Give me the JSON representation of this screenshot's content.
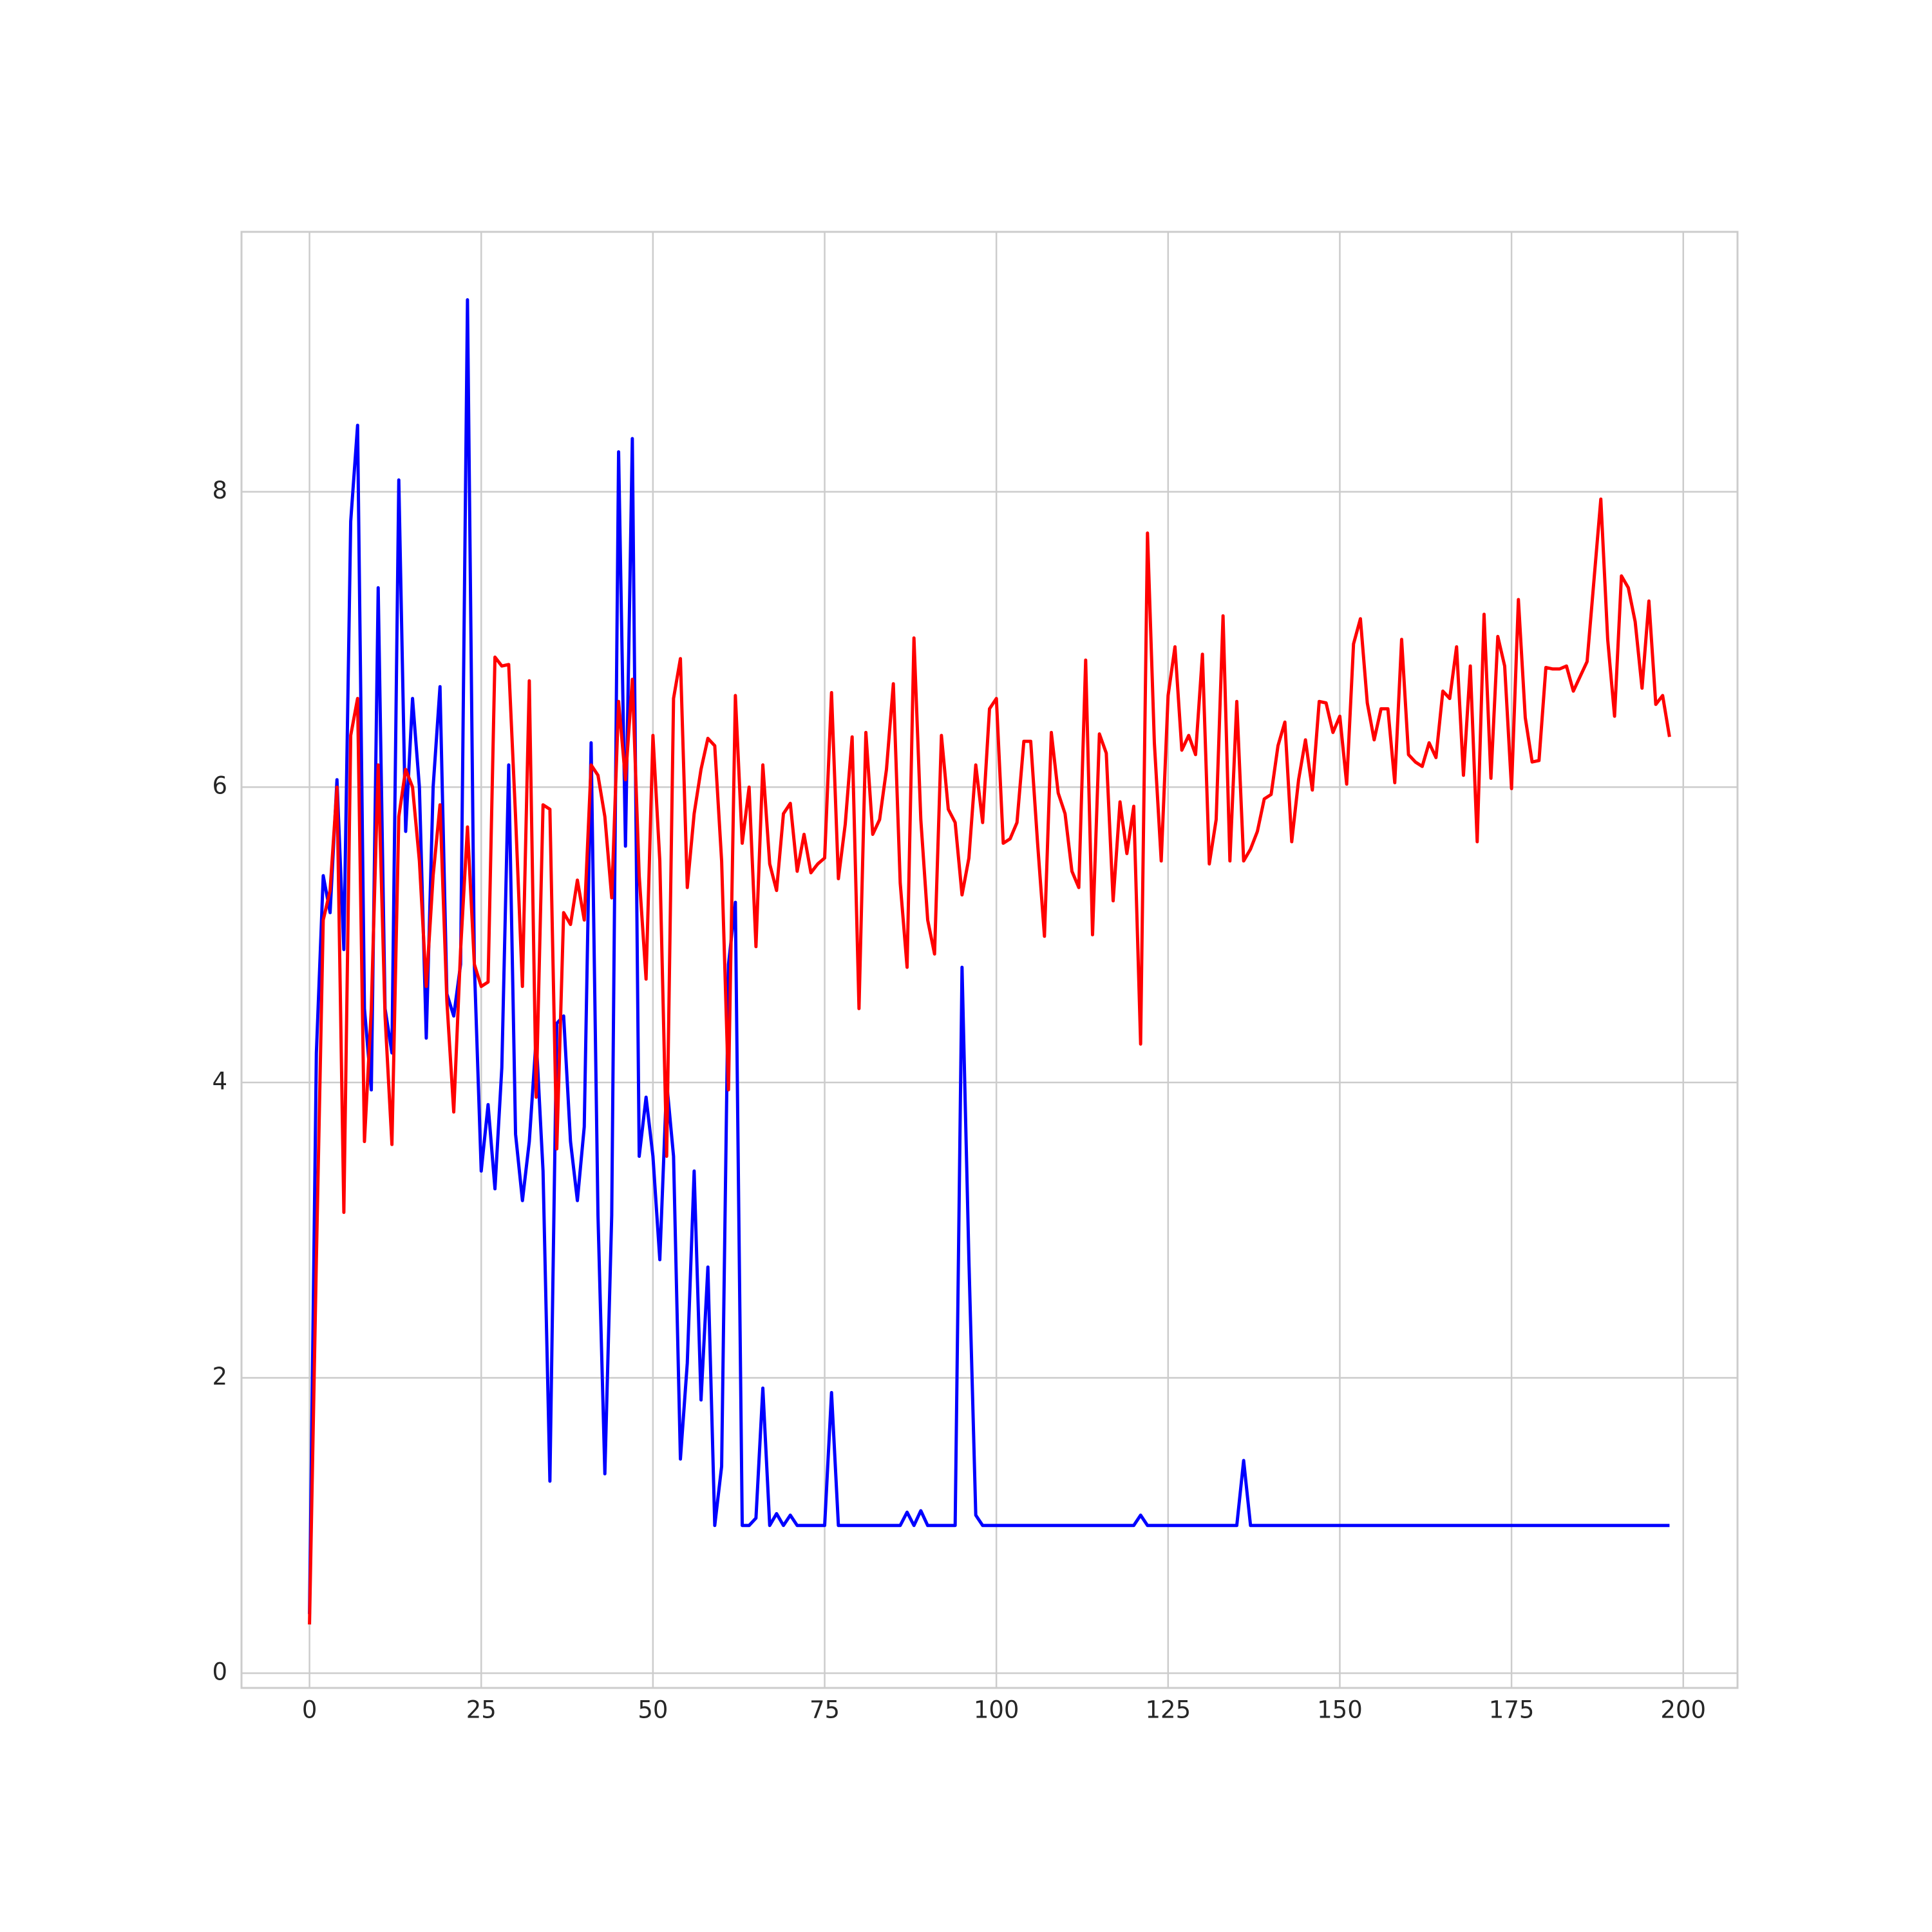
{
  "chart_data": {
    "type": "line",
    "grid": true,
    "xlim": [
      -9.9,
      207.9
    ],
    "ylim": [
      -0.1,
      9.76
    ],
    "xticks": [
      0,
      25,
      50,
      75,
      100,
      125,
      150,
      175,
      200
    ],
    "yticks": [
      0,
      2,
      4,
      6,
      8
    ],
    "x": [
      0,
      1,
      2,
      3,
      4,
      5,
      6,
      7,
      8,
      9,
      10,
      11,
      12,
      13,
      14,
      15,
      16,
      17,
      18,
      19,
      20,
      21,
      22,
      23,
      24,
      25,
      26,
      27,
      28,
      29,
      30,
      31,
      32,
      33,
      34,
      35,
      36,
      37,
      38,
      39,
      40,
      41,
      42,
      43,
      44,
      45,
      46,
      47,
      48,
      49,
      50,
      51,
      52,
      53,
      54,
      55,
      56,
      57,
      58,
      59,
      60,
      61,
      62,
      63,
      64,
      65,
      66,
      67,
      68,
      69,
      70,
      71,
      72,
      73,
      74,
      75,
      76,
      77,
      78,
      79,
      80,
      81,
      82,
      83,
      84,
      85,
      86,
      87,
      88,
      89,
      90,
      91,
      92,
      93,
      94,
      95,
      96,
      97,
      98,
      99,
      100,
      101,
      102,
      103,
      104,
      105,
      106,
      107,
      108,
      109,
      110,
      111,
      112,
      113,
      114,
      115,
      116,
      117,
      118,
      119,
      120,
      121,
      122,
      123,
      124,
      125,
      126,
      127,
      128,
      129,
      130,
      131,
      132,
      133,
      134,
      135,
      136,
      137,
      138,
      139,
      140,
      141,
      142,
      143,
      144,
      145,
      146,
      147,
      148,
      149,
      150,
      151,
      152,
      153,
      154,
      155,
      156,
      157,
      158,
      159,
      160,
      161,
      162,
      163,
      164,
      165,
      166,
      167,
      168,
      169,
      170,
      171,
      172,
      173,
      174,
      175,
      176,
      177,
      178,
      179,
      180,
      181,
      182,
      183,
      184,
      185,
      186,
      187,
      188,
      189,
      190,
      191,
      192,
      193,
      194,
      195,
      196,
      197,
      198
    ],
    "series": [
      {
        "color": "#0000ff",
        "values": [
          0.4,
          4.2,
          5.4,
          5.15,
          6.05,
          4.9,
          7.8,
          8.45,
          4.5,
          3.95,
          7.35,
          4.5,
          4.2,
          8.08,
          5.7,
          6.6,
          6.0,
          4.3,
          6.0,
          6.68,
          4.6,
          4.45,
          4.8,
          9.3,
          4.8,
          3.4,
          3.85,
          3.28,
          4.1,
          6.15,
          3.65,
          3.2,
          3.6,
          4.3,
          3.4,
          1.3,
          4.4,
          4.45,
          3.6,
          3.2,
          3.7,
          6.3,
          3.1,
          1.35,
          3.1,
          8.27,
          5.6,
          8.36,
          3.5,
          3.9,
          3.5,
          2.8,
          4.0,
          3.5,
          1.45,
          2.1,
          3.4,
          1.85,
          2.75,
          1.0,
          1.4,
          4.8,
          5.22,
          1.0,
          1.0,
          1.05,
          1.93,
          1.0,
          1.08,
          1.0,
          1.07,
          1,
          1,
          1,
          1,
          1,
          1.9,
          1,
          1,
          1,
          1,
          1,
          1,
          1,
          1,
          1,
          1,
          1.09,
          1,
          1.1,
          1,
          1,
          1,
          1,
          1,
          4.78,
          2.8,
          1.07,
          1,
          1,
          1,
          1,
          1,
          1,
          1,
          1,
          1,
          1,
          1,
          1,
          1,
          1,
          1,
          1,
          1,
          1,
          1,
          1,
          1,
          1,
          1,
          1.07,
          1,
          1,
          1,
          1,
          1,
          1,
          1,
          1,
          1,
          1,
          1,
          1,
          1,
          1,
          1.44,
          1,
          1,
          1,
          1,
          1,
          1,
          1,
          1,
          1,
          1,
          1,
          1,
          1,
          1,
          1,
          1,
          1,
          1,
          1,
          1,
          1,
          1,
          1,
          1,
          1,
          1,
          1,
          1,
          1,
          1,
          1,
          1,
          1,
          1,
          1,
          1,
          1,
          1,
          1,
          1,
          1,
          1,
          1,
          1,
          1,
          1,
          1,
          1,
          1,
          1,
          1,
          1,
          1,
          1,
          1,
          1,
          1,
          1,
          1,
          1,
          1,
          1
        ]
      },
      {
        "color": "#ff0000",
        "values": [
          0.33,
          2.8,
          5.1,
          5.3,
          6.0,
          3.12,
          6.35,
          6.6,
          3.6,
          4.5,
          6.15,
          4.45,
          3.58,
          5.8,
          6.12,
          6.0,
          5.5,
          4.65,
          5.4,
          5.88,
          4.55,
          3.8,
          4.9,
          5.73,
          4.8,
          4.65,
          4.68,
          6.88,
          6.82,
          6.83,
          5.8,
          4.65,
          6.72,
          3.9,
          5.88,
          5.85,
          3.55,
          5.15,
          5.07,
          5.37,
          5.1,
          6.15,
          6.08,
          5.8,
          5.25,
          6.58,
          6.05,
          6.73,
          5.4,
          4.7,
          6.35,
          5.5,
          3.5,
          6.6,
          6.87,
          5.32,
          5.82,
          6.12,
          6.33,
          6.28,
          5.5,
          3.95,
          6.62,
          5.62,
          6.0,
          4.92,
          6.15,
          5.48,
          5.3,
          5.82,
          5.89,
          5.43,
          5.68,
          5.42,
          5.48,
          5.52,
          6.64,
          5.38,
          5.75,
          6.34,
          4.5,
          6.37,
          5.68,
          5.78,
          6.12,
          6.7,
          5.35,
          4.78,
          7.01,
          5.78,
          5.1,
          4.87,
          6.35,
          5.85,
          5.76,
          5.27,
          5.52,
          6.15,
          5.76,
          6.53,
          6.6,
          5.62,
          5.65,
          5.76,
          6.31,
          6.31,
          5.62,
          4.99,
          6.37,
          5.96,
          5.82,
          5.43,
          5.32,
          6.86,
          5.0,
          6.36,
          6.23,
          5.23,
          5.9,
          5.55,
          5.87,
          4.26,
          7.72,
          6.3,
          5.5,
          6.62,
          6.95,
          6.25,
          6.35,
          6.22,
          6.9,
          5.48,
          5.78,
          7.16,
          5.5,
          6.58,
          5.5,
          5.58,
          5.7,
          5.92,
          5.95,
          6.28,
          6.44,
          5.63,
          6.05,
          6.32,
          5.98,
          6.58,
          6.57,
          6.37,
          6.48,
          6.02,
          6.97,
          7.14,
          6.57,
          6.32,
          6.53,
          6.53,
          6.03,
          7.0,
          6.22,
          6.17,
          6.14,
          6.3,
          6.2,
          6.65,
          6.6,
          6.95,
          6.08,
          6.82,
          5.63,
          7.17,
          6.06,
          7.02,
          6.82,
          5.99,
          7.27,
          6.47,
          6.17,
          6.18,
          6.81,
          6.8,
          6.8,
          6.82,
          6.65,
          6.75,
          6.85,
          7.4,
          7.95,
          7.0,
          6.48,
          7.43,
          7.35,
          7.12,
          6.67,
          7.26,
          6.56,
          6.62,
          6.34
        ]
      }
    ]
  }
}
